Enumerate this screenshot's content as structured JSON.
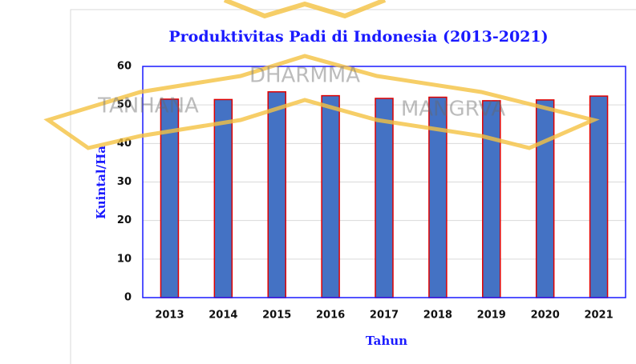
{
  "chart_data": {
    "type": "bar",
    "title": "Produktivitas Padi di Indonesia (2013-2021)",
    "x_label": "Tahun",
    "y_label": "Kuintal/Ha",
    "categories": [
      "2013",
      "2014",
      "2015",
      "2016",
      "2017",
      "2018",
      "2019",
      "2020",
      "2021"
    ],
    "values": [
      51.5,
      51.4,
      53.4,
      52.4,
      51.7,
      52.0,
      51.1,
      51.3,
      52.3
    ],
    "color": "#4472c4",
    "edge_color": "#e00000",
    "ylim": [
      0,
      60
    ],
    "yticks": [
      0,
      10,
      20,
      30,
      40,
      50,
      60
    ],
    "grid": true,
    "watermark": [
      "TANHANA",
      "DHARMMA",
      "MANGRVA"
    ]
  }
}
